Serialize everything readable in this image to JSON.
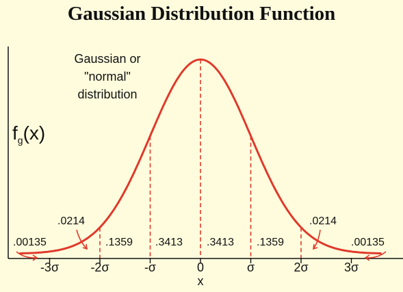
{
  "title": "Gaussian Distribution Function",
  "curve_label_lines": [
    "Gaussian or",
    "\"normal\"",
    "distribution"
  ],
  "y_axis_label": {
    "main": "f",
    "sub": "g",
    "rest": "(x)"
  },
  "x_axis_label": "x",
  "colors": {
    "background": "#fefcdd",
    "curve": "#e0392b",
    "axis": "#111111",
    "text": "#111111"
  },
  "chart_data": {
    "type": "line",
    "function": "gaussian",
    "mean": 0,
    "sigma": 1,
    "xlim": [
      -3.6,
      3.6
    ],
    "x_tick_labels": [
      "-3σ",
      "-2σ",
      "-σ",
      "0",
      "σ",
      "2σ",
      "3σ"
    ],
    "x_tick_values": [
      -3,
      -2,
      -1,
      0,
      1,
      2,
      3
    ],
    "region_markers_sigma": [
      -2,
      -1,
      0,
      1,
      2
    ],
    "region_probabilities": [
      {
        "value": ".00135",
        "from": null,
        "to": -3
      },
      {
        "value": ".0214",
        "from": -3,
        "to": -2
      },
      {
        "value": ".1359",
        "from": -2,
        "to": -1
      },
      {
        "value": ".3413",
        "from": -1,
        "to": 0
      },
      {
        "value": ".3413",
        "from": 0,
        "to": 1
      },
      {
        "value": ".1359",
        "from": 1,
        "to": 2
      },
      {
        "value": ".0214",
        "from": 2,
        "to": 3
      },
      {
        "value": ".00135",
        "from": 3,
        "to": null
      }
    ]
  }
}
